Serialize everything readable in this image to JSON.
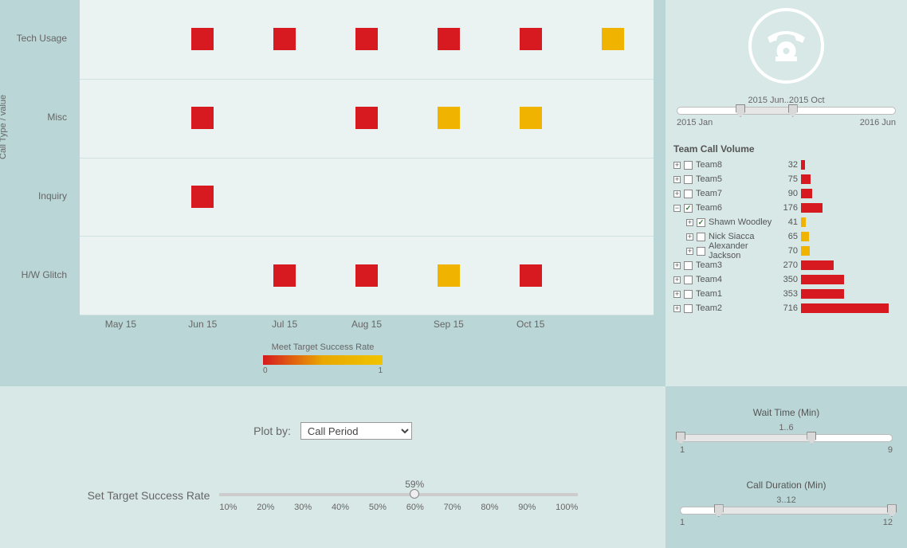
{
  "chart": {
    "y_axis_label": "Call Type / value",
    "y_categories": [
      "Tech Usage",
      "Misc",
      "Inquiry",
      "H/W Glitch"
    ],
    "x_categories": [
      "May 15",
      "Jun 15",
      "Jul 15",
      "Aug 15",
      "Sep 15",
      "Oct 15"
    ],
    "background_color": "#eaf3f2",
    "colors": {
      "red": "#d61a1f",
      "orange": "#f0b400"
    },
    "cells": [
      {
        "row": 0,
        "col": 1,
        "color": "red"
      },
      {
        "row": 0,
        "col": 2,
        "color": "red"
      },
      {
        "row": 0,
        "col": 3,
        "color": "red"
      },
      {
        "row": 0,
        "col": 4,
        "color": "red"
      },
      {
        "row": 0,
        "col": 5,
        "color": "red"
      },
      {
        "row": 0,
        "col": 6,
        "color": "orange"
      },
      {
        "row": 1,
        "col": 1,
        "color": "red"
      },
      {
        "row": 1,
        "col": 3,
        "color": "red"
      },
      {
        "row": 1,
        "col": 4,
        "color": "orange"
      },
      {
        "row": 1,
        "col": 5,
        "color": "orange"
      },
      {
        "row": 2,
        "col": 1,
        "color": "red"
      },
      {
        "row": 3,
        "col": 2,
        "color": "red"
      },
      {
        "row": 3,
        "col": 3,
        "color": "red"
      },
      {
        "row": 3,
        "col": 4,
        "color": "orange"
      },
      {
        "row": 3,
        "col": 5,
        "color": "red"
      }
    ],
    "legend": {
      "title": "Meet Target Success Rate",
      "min": "0",
      "max": "1"
    }
  },
  "time_slider": {
    "range_label": "2015 Jun..2015 Oct",
    "min_label": "2015 Jan",
    "max_label": "2016 Jun",
    "handle_positions_pct": [
      29,
      53
    ]
  },
  "tree": {
    "title": "Team Call Volume",
    "max_value": 716,
    "bar_colors": {
      "team": "#d61a1f",
      "member": "#f0b400"
    },
    "rows": [
      {
        "exp": "+",
        "checked": false,
        "label": "Team8",
        "value": 32,
        "color": "team"
      },
      {
        "exp": "+",
        "checked": false,
        "label": "Team5",
        "value": 75,
        "color": "team"
      },
      {
        "exp": "+",
        "checked": false,
        "label": "Team7",
        "value": 90,
        "color": "team"
      },
      {
        "exp": "−",
        "checked": true,
        "label": "Team6",
        "value": 176,
        "color": "team"
      },
      {
        "exp": "+",
        "checked": true,
        "label": "Shawn Woodley",
        "value": 41,
        "color": "member",
        "indent": true
      },
      {
        "exp": "+",
        "checked": false,
        "label": "Nick Siacca",
        "value": 65,
        "color": "member",
        "indent": true
      },
      {
        "exp": "+",
        "checked": false,
        "label": "Alexander Jackson",
        "value": 70,
        "color": "member",
        "indent": true
      },
      {
        "exp": "+",
        "checked": false,
        "label": "Team3",
        "value": 270,
        "color": "team"
      },
      {
        "exp": "+",
        "checked": false,
        "label": "Team4",
        "value": 350,
        "color": "team"
      },
      {
        "exp": "+",
        "checked": false,
        "label": "Team1",
        "value": 353,
        "color": "team"
      },
      {
        "exp": "+",
        "checked": false,
        "label": "Team2",
        "value": 716,
        "color": "team"
      }
    ]
  },
  "plot_by": {
    "label": "Plot by:",
    "selected": "Call Period"
  },
  "target_rate": {
    "label": "Set Target Success Rate",
    "value_label": "59%",
    "value_pct": 54.4,
    "ticks": [
      "10%",
      "20%",
      "30%",
      "40%",
      "50%",
      "60%",
      "70%",
      "80%",
      "90%",
      "100%"
    ]
  },
  "wait_time": {
    "title": "Wait Time (Min)",
    "range_label": "1..6",
    "min_label": "1",
    "max_label": "9",
    "handle_positions_pct": [
      0,
      62
    ]
  },
  "call_duration": {
    "title": "Call Duration (Min)",
    "range_label": "3..12",
    "min_label": "1",
    "max_label": "12",
    "handle_positions_pct": [
      18,
      100
    ]
  }
}
